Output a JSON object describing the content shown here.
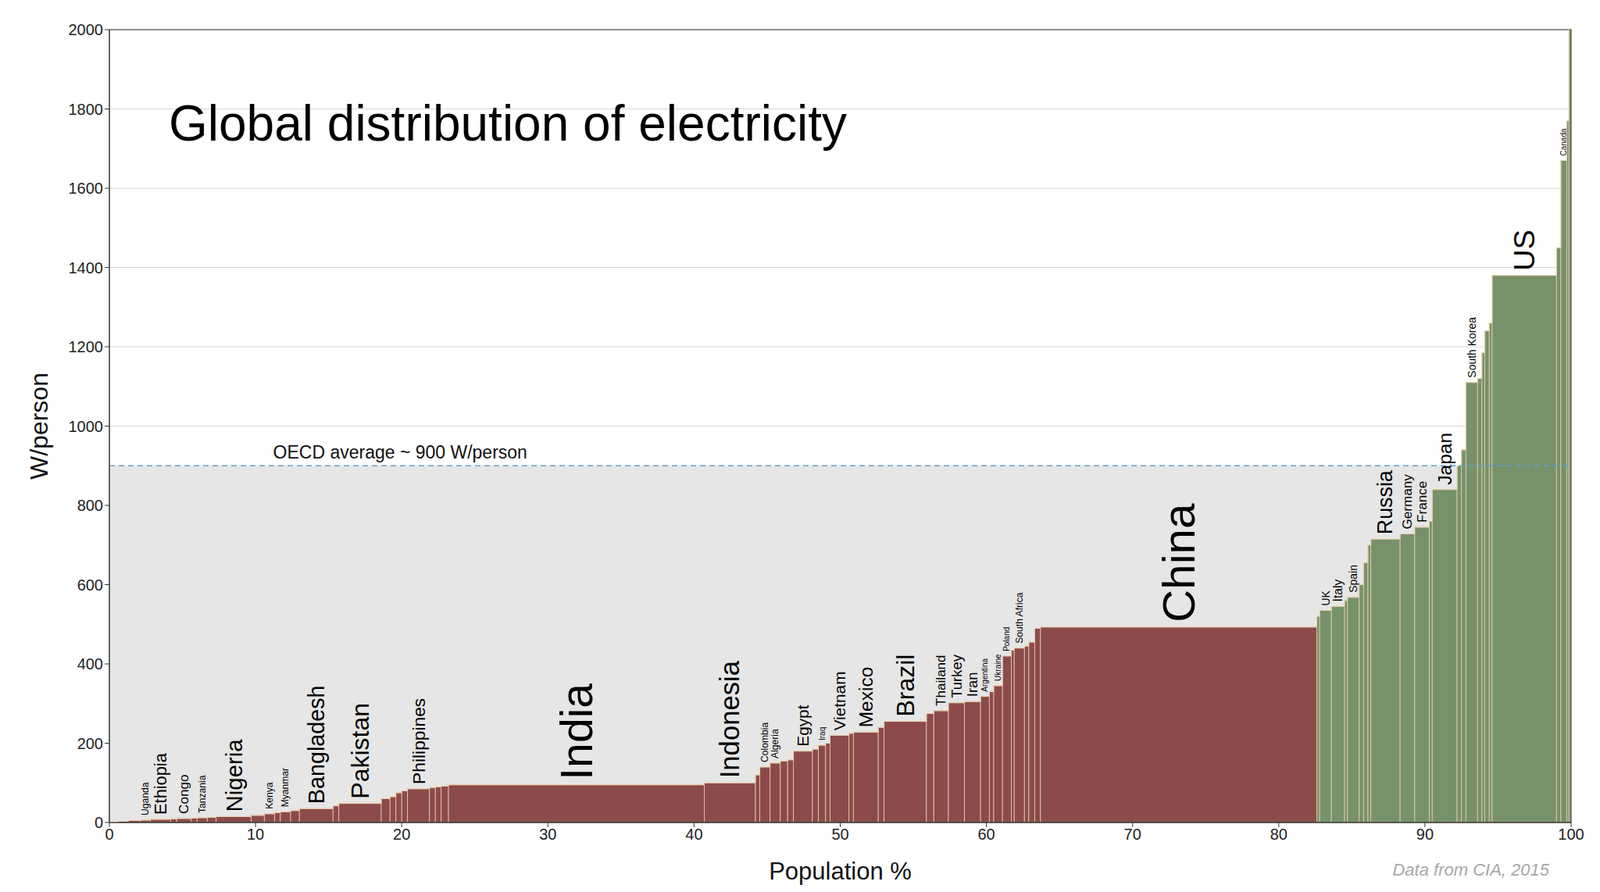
{
  "chart_data": {
    "type": "step_area",
    "title": "Global distribution of electricity",
    "x_label": "Population %",
    "y_label": "W/person",
    "source": "Data from CIA, 2015",
    "xlim": [
      0,
      100
    ],
    "ylim": [
      0,
      2000
    ],
    "xticks": [
      0,
      10,
      20,
      30,
      40,
      50,
      60,
      70,
      80,
      90,
      100
    ],
    "yticks": [
      0,
      200,
      400,
      600,
      800,
      1000,
      1200,
      1400,
      1600,
      1800,
      2000
    ],
    "grid": true,
    "annotations": [
      {
        "text": "OECD average ~ 900 W/person",
        "y": 900
      }
    ],
    "x": [
      0.0,
      0.6,
      1.3,
      2.1,
      2.8,
      4.2,
      4.6,
      5.6,
      6.0,
      6.7,
      7.3,
      9.7,
      10.6,
      11.3,
      11.7,
      12.4,
      13.0,
      15.3,
      15.7,
      18.6,
      19.2,
      19.6,
      20.0,
      20.4,
      21.9,
      22.3,
      22.7,
      23.2,
      40.7,
      44.2,
      44.5,
      45.2,
      45.9,
      46.4,
      46.8,
      48.1,
      48.5,
      49.0,
      49.3,
      50.6,
      50.9,
      52.6,
      53.0,
      55.9,
      56.4,
      57.4,
      58.5,
      59.6,
      60.2,
      60.5,
      61.1,
      61.7,
      61.9,
      62.6,
      62.9,
      63.3,
      63.7,
      82.6,
      82.8,
      83.6,
      84.5,
      84.7,
      85.5,
      85.8,
      86.1,
      86.3,
      88.3,
      89.3,
      90.3,
      90.5,
      92.2,
      92.5,
      92.8,
      93.6,
      93.9,
      94.1,
      94.4,
      94.6,
      99.0,
      99.3,
      99.7,
      99.85
    ],
    "values": [
      1,
      3,
      5,
      6,
      8,
      9,
      10,
      11,
      12,
      13,
      15,
      18,
      22,
      25,
      27,
      30,
      35,
      42,
      48,
      60,
      65,
      75,
      80,
      85,
      88,
      90,
      92,
      95,
      100,
      120,
      140,
      150,
      155,
      158,
      180,
      185,
      195,
      200,
      220,
      225,
      228,
      240,
      255,
      275,
      282,
      302,
      305,
      318,
      330,
      345,
      420,
      435,
      440,
      445,
      455,
      490,
      493,
      520,
      535,
      545,
      560,
      568,
      600,
      655,
      700,
      715,
      728,
      745,
      760,
      840,
      900,
      940,
      1110,
      1120,
      1185,
      1240,
      1260,
      1380,
      1450,
      1670,
      1770,
      2000
    ],
    "categories": [
      null,
      null,
      null,
      "Uganda",
      "Ethiopia",
      null,
      "Congo",
      null,
      "Tanzania",
      null,
      "Nigeria",
      null,
      "Kenya",
      null,
      "Myanmar",
      null,
      "Bangladesh",
      null,
      "Pakistan",
      null,
      null,
      null,
      null,
      "Philippines",
      null,
      null,
      null,
      "India",
      "Indonesia",
      null,
      "Colombia",
      "Algeria",
      null,
      null,
      "Egypt",
      null,
      "Iraq",
      null,
      "Vietnam",
      null,
      "Mexico",
      null,
      "Brazil",
      null,
      "Thailand",
      "Turkey",
      "Iran",
      "Argentina",
      null,
      "Ukraine",
      "Poland",
      null,
      "South Africa",
      null,
      null,
      null,
      "China",
      null,
      "UK",
      "Italy",
      null,
      "Spain",
      null,
      null,
      null,
      "Russia",
      "Germany",
      "France",
      null,
      "Japan",
      null,
      null,
      "South Korea",
      null,
      null,
      null,
      null,
      "US",
      null,
      "Canada",
      null,
      null
    ],
    "colors": [
      "#8c4b4a",
      "#8c4b4a",
      "#8c4b4a",
      "#8c4b4a",
      "#8c4b4a",
      "#8c4b4a",
      "#8c4b4a",
      "#8c4b4a",
      "#8c4b4a",
      "#8c4b4a",
      "#8c4b4a",
      "#8c4b4a",
      "#8c4b4a",
      "#8c4b4a",
      "#8c4b4a",
      "#8c4b4a",
      "#8c4b4a",
      "#8c4b4a",
      "#8c4b4a",
      "#8c4b4a",
      "#8c4b4a",
      "#8c4b4a",
      "#8c4b4a",
      "#8c4b4a",
      "#8c4b4a",
      "#8c4b4a",
      "#8c4b4a",
      "#8c4b4a",
      "#8c4b4a",
      "#8c4b4a",
      "#8c4b4a",
      "#8c4b4a",
      "#8c4b4a",
      "#8c4b4a",
      "#8c4b4a",
      "#8c4b4a",
      "#8c4b4a",
      "#8c4b4a",
      "#8c4b4a",
      "#8c4b4a",
      "#8c4b4a",
      "#8c4b4a",
      "#8c4b4a",
      "#8c4b4a",
      "#8c4b4a",
      "#8c4b4a",
      "#8c4b4a",
      "#8c4b4a",
      "#8c4b4a",
      "#8c4b4a",
      "#8c4b4a",
      "#8c4b4a",
      "#8c4b4a",
      "#8c4b4a",
      "#8c4b4a",
      "#8c4b4a",
      "#8c4b4a",
      "#77926a",
      "#77926a",
      "#77926a",
      "#77926a",
      "#77926a",
      "#77926a",
      "#77926a",
      "#77926a",
      "#77926a",
      "#77926a",
      "#77926a",
      "#77926a",
      "#77926a",
      "#77926a",
      "#77926a",
      "#77926a",
      "#77926a",
      "#77926a",
      "#77926a",
      "#77926a",
      "#77926a",
      "#77926a",
      "#77926a",
      "#77926a",
      "#77926a"
    ]
  }
}
